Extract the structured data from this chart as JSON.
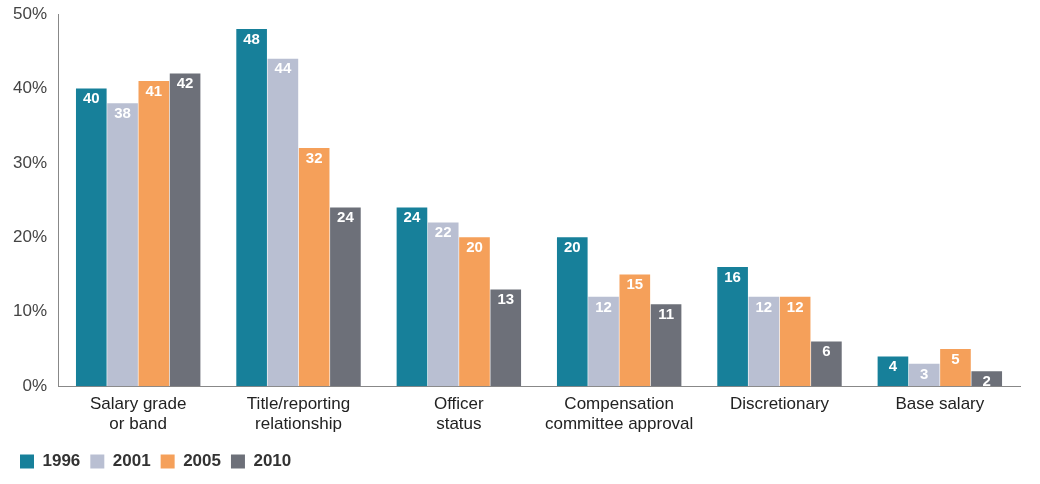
{
  "chart_data": {
    "type": "bar",
    "categories": [
      "Salary grade\nor band",
      "Title/reporting\nrelationship",
      "Officer\nstatus",
      "Compensation\ncommittee approval",
      "Discretionary",
      "Base salary"
    ],
    "series": [
      {
        "name": "1996",
        "color": "#17809a",
        "values": [
          40,
          48,
          24,
          20,
          16,
          4
        ]
      },
      {
        "name": "2001",
        "color": "#b9bfd2",
        "values": [
          38,
          44,
          22,
          12,
          12,
          3
        ]
      },
      {
        "name": "2005",
        "color": "#f5a05a",
        "values": [
          41,
          32,
          20,
          15,
          12,
          5
        ]
      },
      {
        "name": "2010",
        "color": "#6d7079",
        "values": [
          42,
          24,
          13,
          11,
          6,
          2
        ]
      }
    ],
    "ylim": [
      0,
      50
    ],
    "yticks": [
      {
        "value": 0,
        "label": "0%"
      },
      {
        "value": 10,
        "label": "10%"
      },
      {
        "value": 20,
        "label": "20%"
      },
      {
        "value": 30,
        "label": "30%"
      },
      {
        "value": 40,
        "label": "40%"
      },
      {
        "value": 50,
        "label": "50%"
      }
    ],
    "grid": false,
    "legend": "bottom left",
    "data_labels": true
  }
}
